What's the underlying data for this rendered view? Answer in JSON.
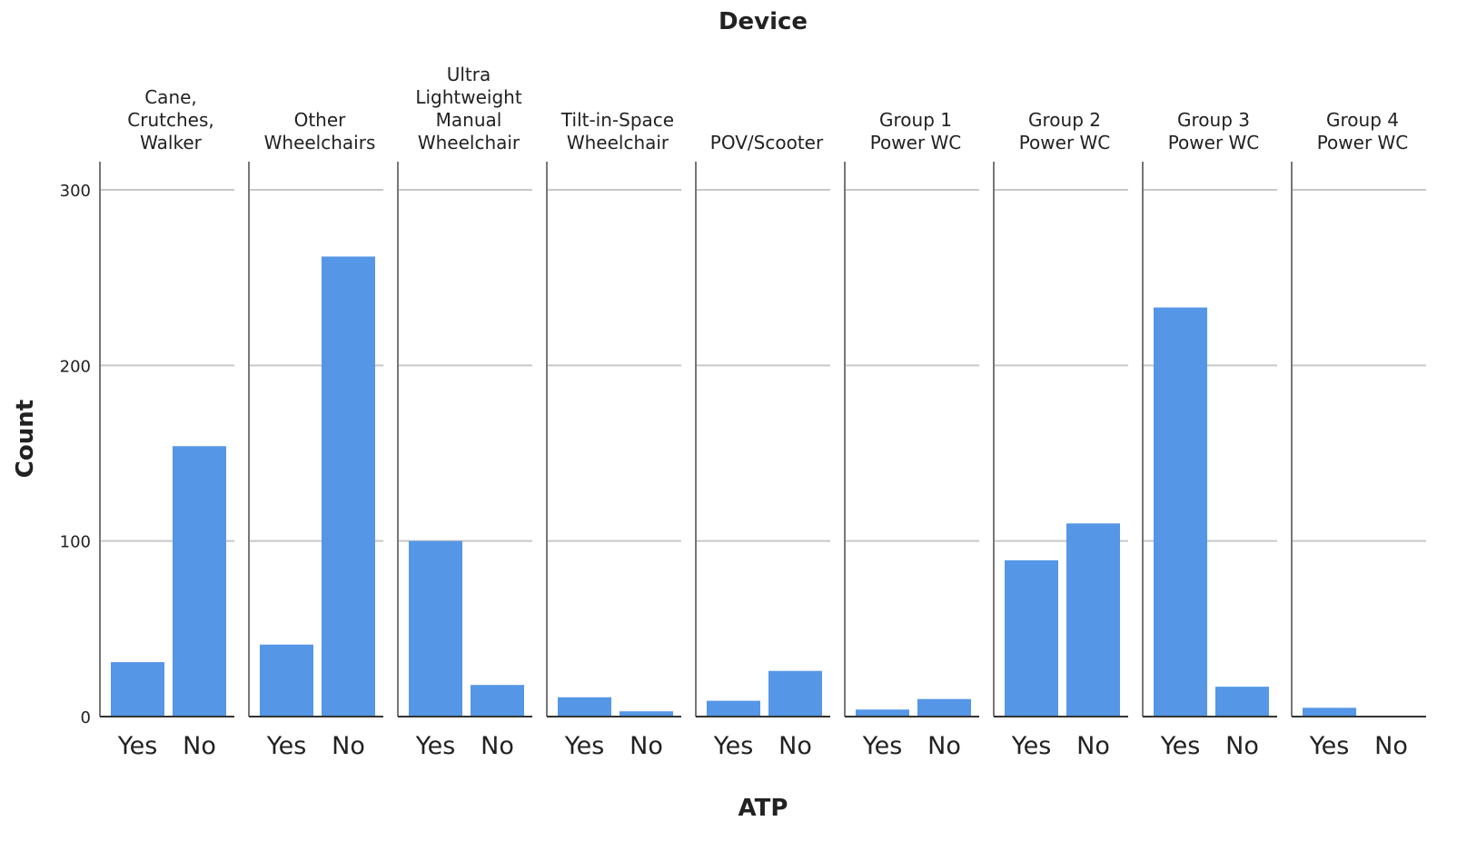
{
  "chart_data": {
    "type": "bar",
    "title": "Device",
    "x_label": "ATP",
    "y_label": "Count",
    "categories": [
      "Yes",
      "No"
    ],
    "facets": [
      {
        "name": [
          "Cane,",
          "Crutches,",
          "Walker"
        ],
        "values": [
          31,
          154
        ]
      },
      {
        "name": [
          "Other",
          "Wheelchairs"
        ],
        "values": [
          41,
          262
        ]
      },
      {
        "name": [
          "Ultra",
          "Lightweight",
          "Manual",
          "Wheelchair"
        ],
        "values": [
          100,
          18
        ]
      },
      {
        "name": [
          "Tilt-in-Space",
          "Wheelchair"
        ],
        "values": [
          11,
          3
        ]
      },
      {
        "name": [
          "POV/Scooter"
        ],
        "values": [
          9,
          26
        ]
      },
      {
        "name": [
          "Group 1",
          "Power WC"
        ],
        "values": [
          4,
          10
        ]
      },
      {
        "name": [
          "Group 2",
          "Power WC"
        ],
        "values": [
          89,
          110
        ]
      },
      {
        "name": [
          "Group 3",
          "Power WC"
        ],
        "values": [
          233,
          17
        ]
      },
      {
        "name": [
          "Group 4",
          "Power WC"
        ],
        "values": [
          5,
          0
        ]
      }
    ],
    "color": "#5596e6",
    "ylim": [
      0,
      300
    ],
    "yticks": [
      0,
      100,
      200,
      300
    ],
    "grid": true
  }
}
